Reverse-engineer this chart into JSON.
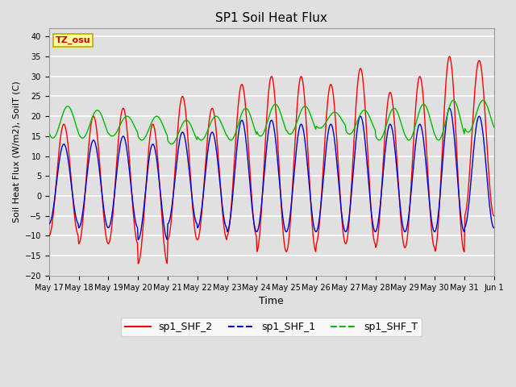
{
  "title": "SP1 Soil Heat Flux",
  "xlabel": "Time",
  "ylabel": "Soil Heat Flux (W/m2), SoilT (C)",
  "ylim": [
    -20,
    42
  ],
  "yticks": [
    -20,
    -15,
    -10,
    -5,
    0,
    5,
    10,
    15,
    20,
    25,
    30,
    35,
    40
  ],
  "bg_color": "#e0e0e0",
  "grid_color": "#ffffff",
  "line_colors": {
    "sp1_SHF_2": "#ff0000",
    "sp1_SHF_1": "#0000cc",
    "sp1_SHF_T": "#00bb00"
  },
  "line_width": 1.0,
  "tz_label": "TZ_osu",
  "tz_box_facecolor": "#ffff99",
  "tz_box_edgecolor": "#bbaa00",
  "tz_text_color": "#cc0000",
  "legend_labels": [
    "sp1_SHF_2",
    "sp1_SHF_1",
    "sp1_SHF_T"
  ],
  "xtick_labels": [
    "May 17",
    "May 18",
    "May 19",
    "May 20",
    "May 21",
    "May 22",
    "May 23",
    "May 24",
    "May 25",
    "May 26",
    "May 27",
    "May 28",
    "May 29",
    "May 30",
    "May 31",
    "Jun 1"
  ],
  "n_days": 15,
  "n_points": 720
}
